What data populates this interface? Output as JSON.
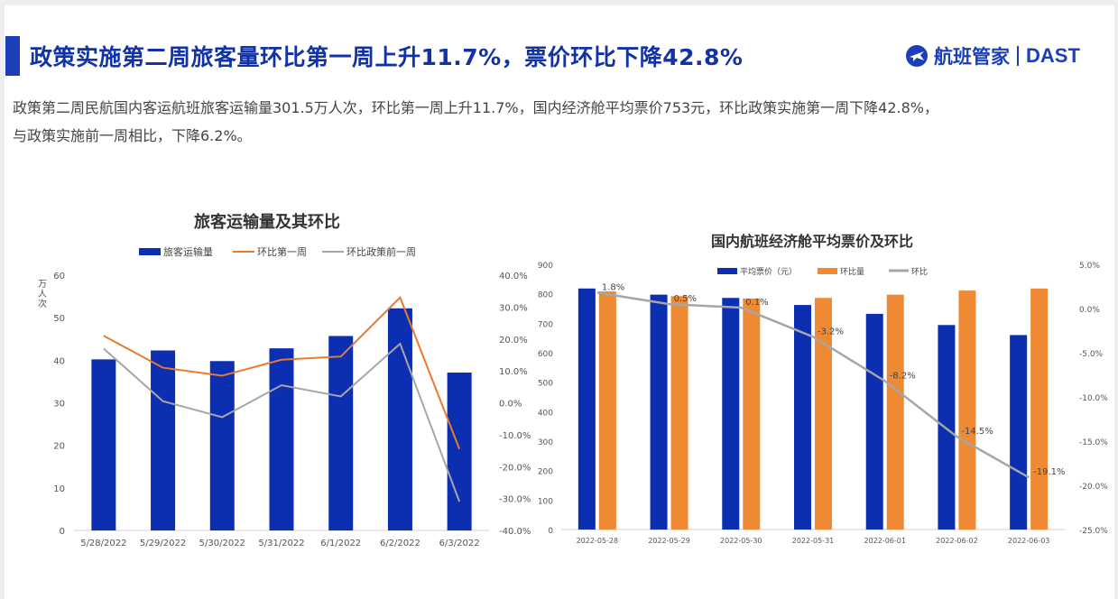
{
  "header": {
    "title": "政策实施第二周旅客量环比第一周上升11.7%，票价环比下降42.8%",
    "logo_cn": "航班管家",
    "logo_en": "DAST",
    "brand_color": "#1b3fb8"
  },
  "description": {
    "line1": "政策第二周民航国内客运航班旅客运输量301.5万人次，环比第一周上升11.7%，国内经济舱平均票价753元，环比政策实施第一周下降42.8%，",
    "line2": "与政策实施前一周相比，下降6.2%。"
  },
  "chart_data": [
    {
      "type": "bar",
      "title": "旅客运输量及其环比",
      "ylabel": "万人次",
      "categories": [
        "5/28/2022",
        "5/29/2022",
        "5/30/2022",
        "5/31/2022",
        "6/1/2022",
        "6/2/2022",
        "6/3/2022"
      ],
      "ylim": [
        0,
        60
      ],
      "y_ticks": [
        "0",
        "10",
        "20",
        "30",
        "40",
        "50",
        "60"
      ],
      "y2lim": [
        -40,
        40
      ],
      "y2_ticks": [
        "-40.0%",
        "-30.0%",
        "-20.0%",
        "-10.0%",
        "0.0%",
        "10.0%",
        "20.0%",
        "30.0%",
        "40.0%"
      ],
      "legend": [
        "旅客运输量",
        "环比第一周",
        "环比政策前一周"
      ],
      "legend_position": "top",
      "series": [
        {
          "name": "旅客运输量",
          "kind": "bar",
          "axis": "left",
          "color": "#0b2fb0",
          "values": [
            40.2,
            42.3,
            39.8,
            42.8,
            45.7,
            52.2,
            37.1
          ]
        },
        {
          "name": "环比第一周",
          "kind": "line",
          "axis": "right",
          "color": "#e87a2e",
          "values": [
            21.0,
            11.0,
            8.5,
            13.5,
            14.5,
            33.0,
            -14.5
          ]
        },
        {
          "name": "环比政策前一周",
          "kind": "line",
          "axis": "right",
          "color": "#a6a6a6",
          "values": [
            17.0,
            0.5,
            -4.5,
            5.5,
            2.0,
            18.5,
            -31.0
          ]
        }
      ]
    },
    {
      "type": "bar",
      "title": "国内航班经济舱平均票价及环比",
      "categories": [
        "2022-05-28",
        "2022-05-29",
        "2022-05-30",
        "2022-05-31",
        "2022-06-01",
        "2022-06-02",
        "2022-06-03"
      ],
      "ylim": [
        0,
        900
      ],
      "y_ticks": [
        "0",
        "100",
        "200",
        "300",
        "400",
        "500",
        "600",
        "700",
        "800",
        "900"
      ],
      "y2lim": [
        -25,
        5
      ],
      "y2_ticks": [
        "-25.0%",
        "-20.0%",
        "-15.0%",
        "-10.0%",
        "-5.0%",
        "0.0%",
        "5.0%"
      ],
      "legend": [
        "平均票价（元）",
        "环比量",
        "环比"
      ],
      "legend_position": "top",
      "series": [
        {
          "name": "平均票价（元）",
          "kind": "bar",
          "axis": "left",
          "color": "#0b2fb0",
          "values": [
            818,
            797,
            786,
            762,
            732,
            694,
            660
          ]
        },
        {
          "name": "环比量",
          "kind": "bar",
          "axis": "left",
          "color": "#ee8a34",
          "values": [
            808,
            792,
            784,
            786,
            797,
            811,
            818
          ]
        },
        {
          "name": "环比",
          "kind": "line",
          "axis": "right",
          "color": "#a6a6a6",
          "values": [
            1.8,
            0.5,
            0.1,
            -3.2,
            -8.2,
            -14.5,
            -19.1
          ],
          "labels": [
            "1.8%",
            "0.5%",
            "0.1%",
            "-3.2%",
            "-8.2%",
            "-14.5%",
            "-19.1%"
          ]
        }
      ]
    }
  ]
}
